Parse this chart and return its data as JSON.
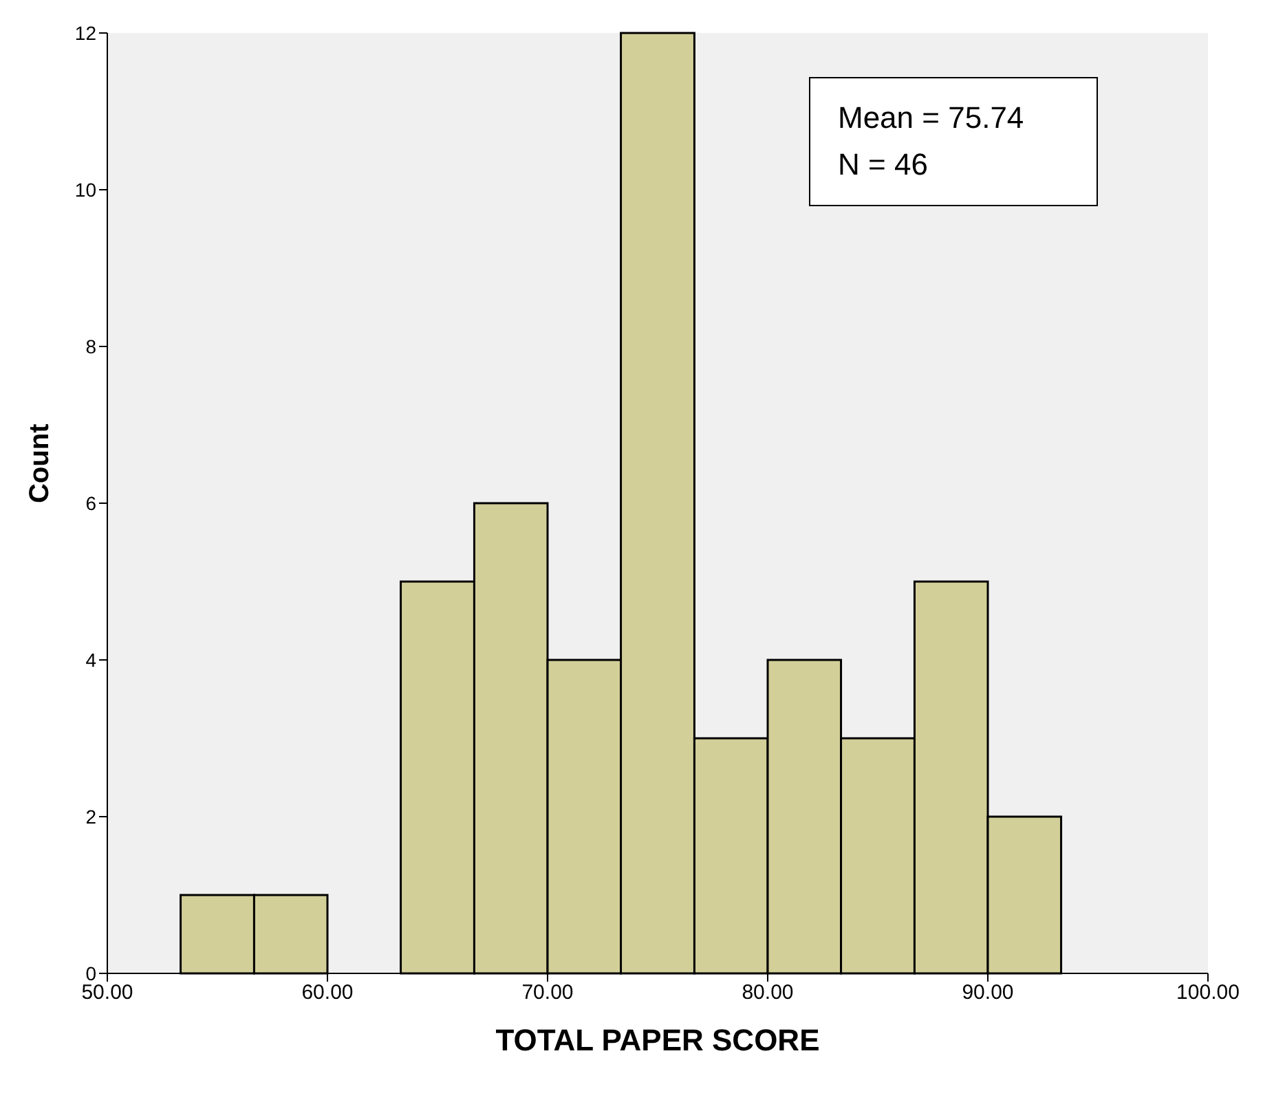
{
  "chart_data": {
    "type": "histogram",
    "xlabel": "TOTAL PAPER SCORE",
    "ylabel": "Count",
    "bins": [
      53.33,
      56.67,
      60,
      63.33,
      66.67,
      70,
      73.33,
      76.67,
      80,
      83.33,
      86.67,
      90,
      93.33
    ],
    "values": [
      1,
      1,
      0,
      5,
      6,
      4,
      12,
      3,
      4,
      3,
      5,
      2
    ],
    "color": "#d3cf99",
    "xlim": [
      50,
      100
    ],
    "xticks": [
      {
        "value": 50,
        "label": "50.00"
      },
      {
        "value": 60,
        "label": "60.00"
      },
      {
        "value": 70,
        "label": "70.00"
      },
      {
        "value": 80,
        "label": "80.00"
      },
      {
        "value": 90,
        "label": "90.00"
      },
      {
        "value": 100,
        "label": "100.00"
      }
    ],
    "ylim": [
      0,
      12
    ],
    "yticks": [
      0,
      2,
      4,
      6,
      8,
      10,
      12
    ],
    "annotations": [
      "Mean = 75.74",
      "N = 46"
    ]
  }
}
